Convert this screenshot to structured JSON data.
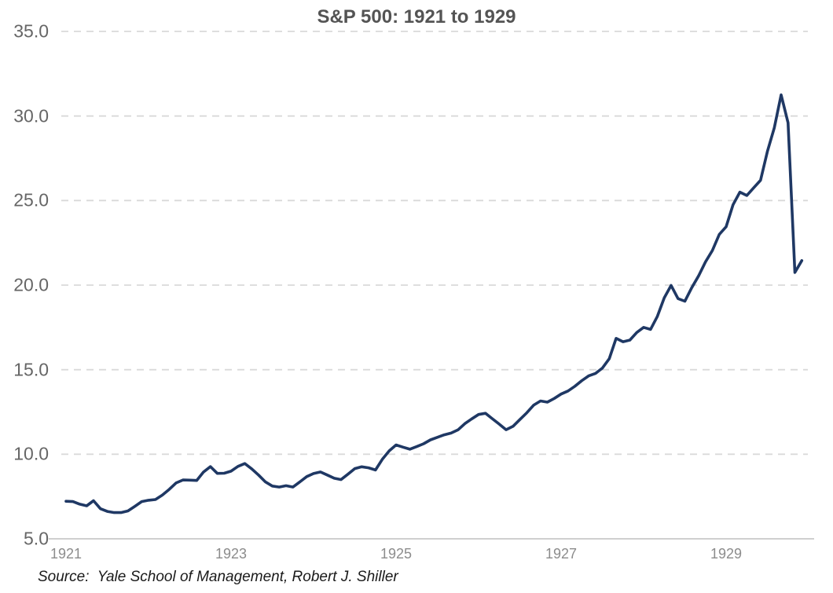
{
  "title": "S&P 500: 1921 to 1929",
  "source_note": "Source:  Yale School of Management, Robert J. Shiller",
  "colors": {
    "line": "#1f3864",
    "gridline": "#d9d9d9",
    "axis_line": "#bfbfbf",
    "title_text": "#545454",
    "y_label_text": "#666666",
    "x_label_text": "#8c8c8c",
    "source_text": "#1a1a1a",
    "background": "#ffffff"
  },
  "chart_data": {
    "type": "line",
    "title": "S&P 500: 1921 to 1929",
    "xlabel": "",
    "ylabel": "",
    "ylim": [
      5,
      35
    ],
    "y_tick_step": 5,
    "y_tick_labels": [
      "5.0",
      "10.0",
      "15.0",
      "20.0",
      "25.0",
      "30.0",
      "35.0"
    ],
    "x_tick_labels": [
      "1921",
      "1923",
      "1925",
      "1927",
      "1929"
    ],
    "x_tick_month_indexes": [
      0,
      24,
      48,
      72,
      96
    ],
    "frequency": "monthly",
    "start_year": 1921,
    "end_year": 1929,
    "grid": "horizontal-dashed",
    "legend": "none",
    "series": [
      {
        "name": "S&P 500",
        "values": [
          7.22,
          7.2,
          7.05,
          6.95,
          7.25,
          6.78,
          6.62,
          6.55,
          6.55,
          6.65,
          6.92,
          7.2,
          7.28,
          7.32,
          7.58,
          7.92,
          8.3,
          8.48,
          8.47,
          8.45,
          8.95,
          9.27,
          8.87,
          8.88,
          9.0,
          9.28,
          9.45,
          9.14,
          8.77,
          8.36,
          8.12,
          8.06,
          8.14,
          8.06,
          8.36,
          8.68,
          8.86,
          8.95,
          8.77,
          8.58,
          8.5,
          8.82,
          9.15,
          9.26,
          9.2,
          9.07,
          9.7,
          10.2,
          10.55,
          10.42,
          10.3,
          10.45,
          10.62,
          10.85,
          11.0,
          11.15,
          11.25,
          11.44,
          11.81,
          12.09,
          12.35,
          12.42,
          12.1,
          11.78,
          11.45,
          11.65,
          12.05,
          12.45,
          12.9,
          13.15,
          13.08,
          13.3,
          13.56,
          13.74,
          14.02,
          14.35,
          14.63,
          14.78,
          15.09,
          15.65,
          16.85,
          16.65,
          16.75,
          17.2,
          17.5,
          17.38,
          18.15,
          19.25,
          19.98,
          19.2,
          19.05,
          19.85,
          20.55,
          21.38,
          22.05,
          23.0,
          23.45,
          24.75,
          25.5,
          25.3,
          25.75,
          26.2,
          27.9,
          29.3,
          31.25,
          29.6,
          20.75,
          21.45
        ]
      }
    ]
  }
}
